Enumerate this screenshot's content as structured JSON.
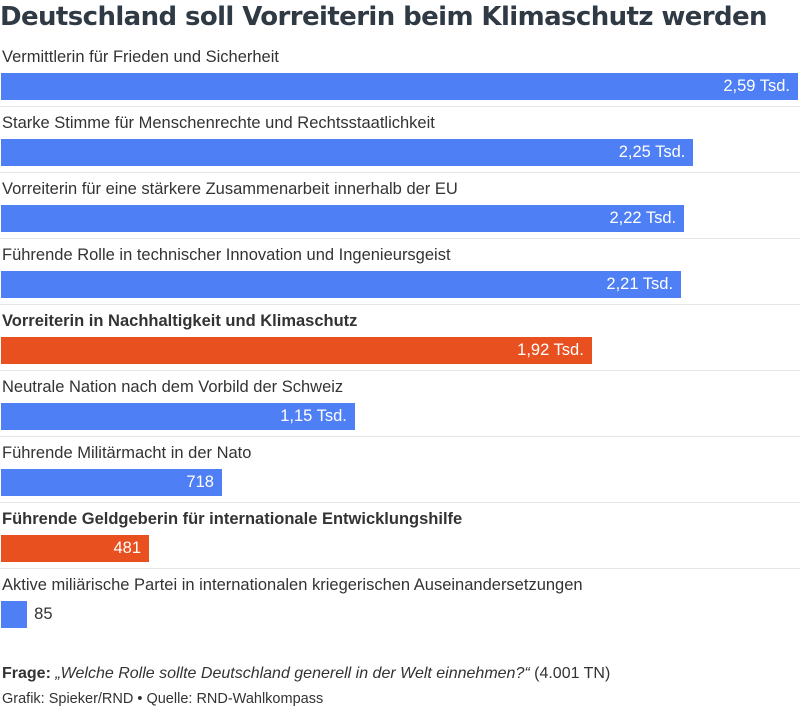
{
  "chart_data": {
    "type": "bar",
    "orientation": "horizontal",
    "title": "Deutschland soll Vorreiterin beim Klimaschutz werden",
    "categories": [
      "Vermittlerin für Frieden und Sicherheit",
      "Starke Stimme für Menschenrechte und Rechtsstaatlichkeit",
      "Vorreiterin für eine stärkere Zusammenarbeit innerhalb der EU",
      "Führende Rolle in technischer Innovation und Ingenieursgeist",
      "Vorreiterin in Nachhaltigkeit und Klimaschutz",
      "Neutrale Nation nach dem Vorbild der Schweiz",
      "Führende Militärmacht in der Nato",
      "Führende Geldgeberin für internationale Entwicklungshilfe",
      "Aktive miliärische Partei in internationalen kriegerischen Auseinandersetzungen"
    ],
    "values": [
      2590,
      2250,
      2220,
      2210,
      1920,
      1150,
      718,
      481,
      85
    ],
    "value_labels": [
      "2,59 Tsd.",
      "2,25 Tsd.",
      "2,22 Tsd.",
      "2,21 Tsd.",
      "1,92 Tsd.",
      "1,15 Tsd.",
      "718",
      "481",
      "85"
    ],
    "highlighted": [
      false,
      false,
      false,
      false,
      true,
      false,
      false,
      true,
      false
    ],
    "colors": {
      "default": "#4f7ff5",
      "highlight": "#e8501f"
    },
    "xlim": [
      0,
      2590
    ],
    "grid": false,
    "legend": "none"
  },
  "footer": {
    "question_prefix": "Frage:",
    "question_text": " „Welche Rolle sollte Deutschland generell in der Welt einnehmen?“",
    "question_suffix": " (4.001 TN)",
    "credits": "Grafik: Spieker/RND • Quelle: RND-Wahlkompass"
  }
}
